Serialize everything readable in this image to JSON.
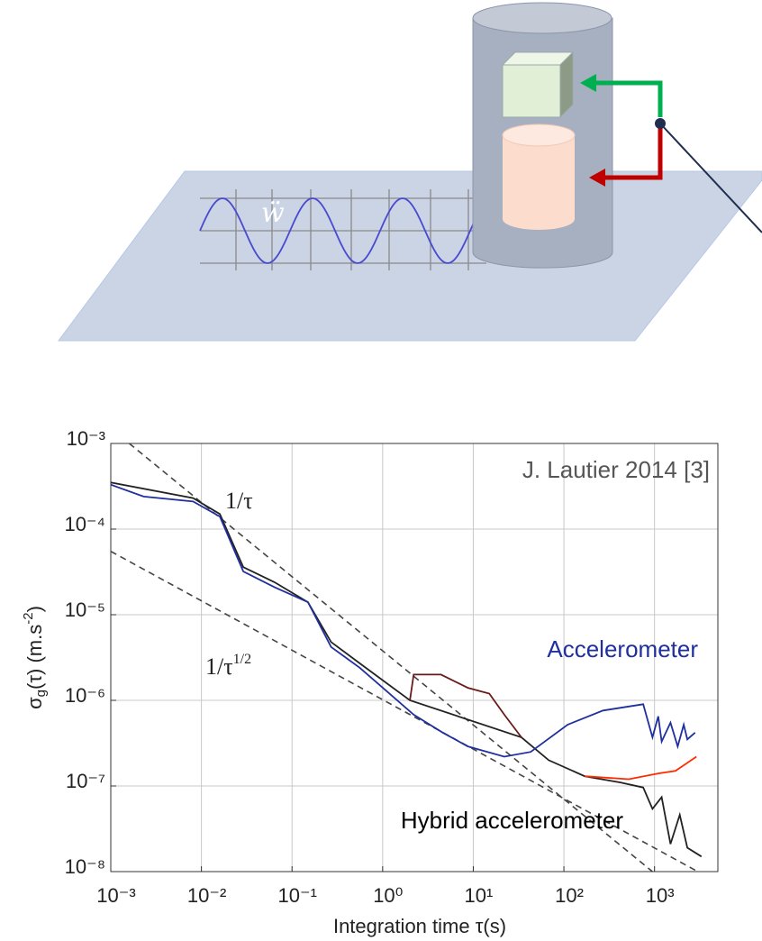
{
  "diagram": {
    "label": "ẅ"
  },
  "chart_data": {
    "type": "line",
    "xlabel": "Integration time τ(s)",
    "ylabel": [
      "σ",
      "g",
      "(τ) (m.s",
      "-2",
      ")"
    ],
    "log_x": true,
    "log_y": true,
    "grid": true,
    "xlim": [
      0.001,
      5000
    ],
    "ylim": [
      1e-08,
      0.001
    ],
    "xticks": [
      {
        "value": 0.001,
        "label": "10⁻³"
      },
      {
        "value": 0.01,
        "label": "10⁻²"
      },
      {
        "value": 0.1,
        "label": "10⁻¹"
      },
      {
        "value": 1,
        "label": "10⁰"
      },
      {
        "value": 10,
        "label": "10¹"
      },
      {
        "value": 100,
        "label": "10²"
      },
      {
        "value": 1000,
        "label": "10³"
      }
    ],
    "yticks": [
      {
        "value": 1e-08,
        "label": "10⁻⁸"
      },
      {
        "value": 1e-07,
        "label": "10⁻⁷"
      },
      {
        "value": 1e-06,
        "label": "10⁻⁶"
      },
      {
        "value": 1e-05,
        "label": "10⁻⁵"
      },
      {
        "value": 0.0001,
        "label": "10⁻⁴"
      },
      {
        "value": 0.001,
        "label": "10⁻³"
      }
    ],
    "series": [
      {
        "color": "#222222",
        "x": [
          0.001,
          0.0081,
          0.016,
          0.029,
          0.064,
          0.15,
          0.27,
          0.56,
          2.0,
          34,
          68,
          170,
          420,
          750,
          950,
          1200,
          1500,
          1900,
          2300,
          3300
        ],
        "values": [
          0.00035,
          0.00023,
          0.00015,
          3.6e-05,
          2.4e-05,
          1.4e-05,
          4.8e-06,
          2.7e-06,
          1e-06,
          3.7e-07,
          2e-07,
          1.3e-07,
          1.1e-07,
          9.6e-08,
          5.4e-08,
          7.4e-08,
          2.1e-08,
          4.6e-08,
          1.9e-08,
          1.5e-08
        ]
      },
      {
        "name": "Accelerometer",
        "color": "#1f2f9e",
        "x": [
          0.001,
          0.0023,
          0.0081,
          0.016,
          0.029,
          0.064,
          0.15,
          0.27,
          0.56,
          2.2,
          4.6,
          8.7,
          22,
          43,
          110,
          270,
          750,
          950,
          1100,
          1200,
          1500,
          1800,
          2100,
          2300,
          2800
        ],
        "values": [
          0.00033,
          0.00024,
          0.00021,
          0.00014,
          3.2e-05,
          2.1e-05,
          1.4e-05,
          4.2e-06,
          2.4e-06,
          6.8e-07,
          4.2e-07,
          2.9e-07,
          2.2e-07,
          2.5e-07,
          5.2e-07,
          7.6e-07,
          9e-07,
          3.7e-07,
          6.5e-07,
          3.3e-07,
          5.5e-07,
          2.9e-07,
          5.2e-07,
          3.5e-07,
          4.2e-07
        ]
      },
      {
        "color": "#6b1a1a",
        "x": [
          2.0,
          2.2,
          4.4,
          8.7,
          15,
          22,
          34
        ],
        "values": [
          1e-06,
          2e-06,
          2e-06,
          1.4e-06,
          1.2e-06,
          6.8e-07,
          3.7e-07
        ]
      },
      {
        "name": "Hybrid accelerometer",
        "color": "#ff2a00",
        "x": [
          170,
          520,
          1100,
          1700,
          2900
        ],
        "values": [
          1.3e-07,
          1.2e-07,
          1.4e-07,
          1.5e-07,
          2.2e-07
        ]
      }
    ],
    "guides": [
      {
        "x": [
          0.0016,
          950
        ],
        "values": [
          0.001,
          1e-08
        ]
      },
      {
        "x": [
          0.001,
          3600
        ],
        "values": [
          5.5e-05,
          9e-09
        ]
      }
    ],
    "annotations": [
      {
        "text": "1/τ"
      },
      {
        "text": "1/τ",
        "superscript": "1/2"
      },
      {
        "text": "J. Lautier 2014 [3]"
      },
      {
        "text": "Accelerometer"
      },
      {
        "text": "Hybrid accelerometer"
      }
    ]
  }
}
